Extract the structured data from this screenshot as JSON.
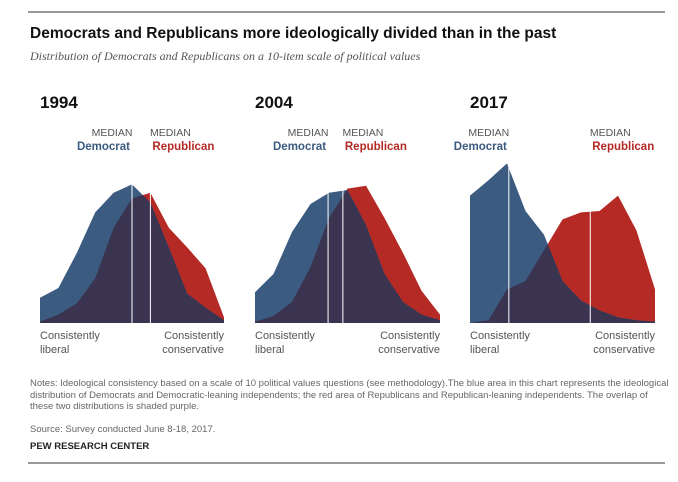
{
  "header": {
    "title": "Democrats and Republicans more ideologically divided than in the past",
    "subtitle": "Distribution of Democrats and Republicans on a 10-item scale of political values"
  },
  "chart_data": [
    {
      "type": "area",
      "title": "1994",
      "x": [
        -10,
        -8,
        -6,
        -4,
        -2,
        0,
        2,
        4,
        6,
        8,
        10
      ],
      "xlim": [
        -10,
        10
      ],
      "ylim": [
        0,
        12
      ],
      "xlabel_left": [
        "Consistently",
        "liberal"
      ],
      "xlabel_right": [
        "Consistently",
        "conservative"
      ],
      "overlap_color": "#3a3450",
      "series": [
        {
          "name": "Democrat",
          "color": "#3b5b80",
          "median_label": "MEDIAN",
          "median": 0,
          "values": [
            1.8,
            2.5,
            5,
            7.9,
            9.3,
            9.9,
            8.6,
            5.4,
            2.1,
            1.1,
            0.2
          ]
        },
        {
          "name": "Republican",
          "color": "#b52a25",
          "median_label": "MEDIAN",
          "median": 2,
          "values": [
            0.1,
            0.6,
            1.4,
            3.2,
            6.8,
            8.9,
            9.3,
            6.8,
            5.4,
            3.9,
            0.4
          ]
        }
      ]
    },
    {
      "type": "area",
      "title": "2004",
      "x": [
        -10,
        -8,
        -6,
        -4,
        -2,
        0,
        2,
        4,
        6,
        8,
        10
      ],
      "xlim": [
        -10,
        10
      ],
      "ylim": [
        0,
        12
      ],
      "xlabel_left": [
        "Consistently",
        "liberal"
      ],
      "xlabel_right": [
        "Consistently",
        "conservative"
      ],
      "overlap_color": "#3a3450",
      "series": [
        {
          "name": "Democrat",
          "color": "#3b5b80",
          "median_label": "MEDIAN",
          "median": -2.1,
          "values": [
            2.2,
            3.5,
            6.5,
            8.5,
            9.3,
            9.5,
            7,
            3.5,
            1.5,
            0.6,
            0.2
          ]
        },
        {
          "name": "Republican",
          "color": "#b52a25",
          "median_label": "MEDIAN",
          "median": -0.5,
          "values": [
            0.1,
            0.5,
            1.5,
            4,
            7.5,
            9.6,
            9.8,
            7.5,
            5,
            2.3,
            0.6
          ]
        }
      ]
    },
    {
      "type": "area",
      "title": "2017",
      "x": [
        -10,
        -8,
        -6,
        -4,
        -2,
        0,
        2,
        4,
        6,
        8,
        10
      ],
      "xlim": [
        -10,
        10
      ],
      "ylim": [
        0,
        12
      ],
      "xlabel_left": [
        "Consistently",
        "liberal"
      ],
      "xlabel_right": [
        "Consistently",
        "conservative"
      ],
      "overlap_color": "#3a3450",
      "series": [
        {
          "name": "Democrat",
          "color": "#3b5b80",
          "median_label": "MEDIAN",
          "median": -5.8,
          "values": [
            9.1,
            10.2,
            11.4,
            8,
            6.3,
            3,
            1.6,
            0.9,
            0.4,
            0.2,
            0.1
          ]
        },
        {
          "name": "Republican",
          "color": "#b52a25",
          "median_label": "MEDIAN",
          "median": 3,
          "values": [
            0,
            0.2,
            2.4,
            3,
            5.2,
            7.4,
            7.9,
            8,
            9.1,
            6.6,
            2.4
          ]
        }
      ]
    }
  ],
  "footer": {
    "notes": "Notes: Ideological consistency based on a scale of 10 political values questions (see methodology).The blue area in this chart represents the ideological distribution of Democrats and Democratic-leaning independents; the red area of Republicans and Republican-leaning independents. The overlap of these two distributions is shaded purple.",
    "source": "Source: Survey conducted June 8-18, 2017.",
    "credit": "PEW RESEARCH CENTER"
  }
}
